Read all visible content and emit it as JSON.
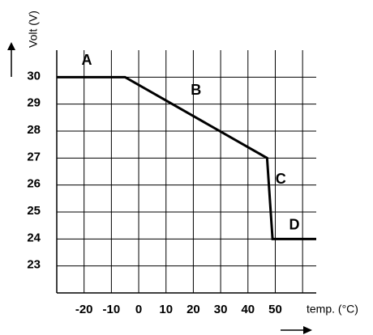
{
  "chart_data": {
    "type": "line",
    "y_label": "Volt (V)",
    "x_label": "temp. (°C)",
    "x": [
      -30,
      -5,
      47,
      49,
      65
    ],
    "series": [
      {
        "color": "#000000",
        "values": [
          30,
          30,
          27,
          24,
          24
        ]
      }
    ],
    "xlim": [
      -30,
      65
    ],
    "ylim": [
      22,
      31
    ],
    "xticks": [
      -20,
      -10,
      0,
      10,
      20,
      30,
      40,
      50
    ],
    "xgrid_extra": [
      -30,
      60
    ],
    "yticks": [
      23,
      24,
      25,
      26,
      27,
      28,
      29,
      30
    ],
    "grid": true,
    "annotations": [
      {
        "text": "A",
        "x": -19,
        "y": 30.6
      },
      {
        "text": "B",
        "x": 21,
        "y": 29.5
      },
      {
        "text": "C",
        "x": 52,
        "y": 26.2
      },
      {
        "text": "D",
        "x": 57,
        "y": 24.5
      }
    ]
  }
}
